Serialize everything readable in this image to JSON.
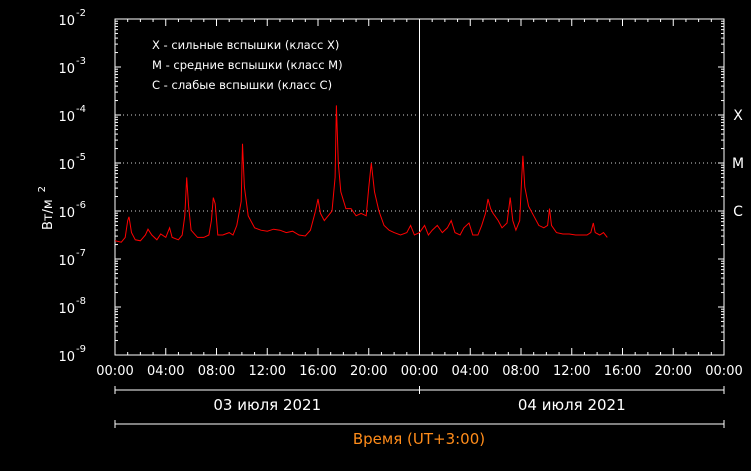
{
  "chart_data": {
    "type": "line",
    "scale": "log",
    "ylim_exp": [
      -9,
      -2
    ],
    "ylabel": "Вт/м",
    "ylabel_sup": "2",
    "ytick_exponents": [
      "-2",
      "-3",
      "-4",
      "-5",
      "-6",
      "-7",
      "-8",
      "-9"
    ],
    "ytick_base": "10",
    "xlabel": "Время (UT+3:00)",
    "x_unit": "hours since 03 июля 2021 00:00",
    "xlim": [
      0,
      48
    ],
    "xtick_labels": [
      "00:00",
      "04:00",
      "08:00",
      "12:00",
      "16:00",
      "20:00",
      "00:00",
      "04:00",
      "08:00",
      "12:00",
      "16:00",
      "20:00",
      "00:00"
    ],
    "dates": [
      "03 июля 2021",
      "04 июля 2021"
    ],
    "day_divider_hour": 24,
    "legend": [
      "X - сильные вспышки (класс X)",
      "M - средние вспышки (класс M)",
      "C  - слабые вспышки (класс C)"
    ],
    "class_lines": [
      {
        "label": "X",
        "exp": -4
      },
      {
        "label": "M",
        "exp": -5
      },
      {
        "label": "C",
        "exp": -6
      }
    ],
    "series": [
      {
        "color": "#ff0000",
        "points": [
          [
            0.0,
            -6.62
          ],
          [
            0.5,
            -6.65
          ],
          [
            0.8,
            -6.55
          ],
          [
            1.0,
            -6.2
          ],
          [
            1.1,
            -6.12
          ],
          [
            1.3,
            -6.45
          ],
          [
            1.6,
            -6.6
          ],
          [
            2.0,
            -6.62
          ],
          [
            2.4,
            -6.5
          ],
          [
            2.6,
            -6.38
          ],
          [
            2.9,
            -6.5
          ],
          [
            3.3,
            -6.6
          ],
          [
            3.6,
            -6.48
          ],
          [
            4.0,
            -6.55
          ],
          [
            4.3,
            -6.35
          ],
          [
            4.5,
            -6.55
          ],
          [
            5.0,
            -6.6
          ],
          [
            5.3,
            -6.5
          ],
          [
            5.5,
            -6.1
          ],
          [
            5.65,
            -5.3
          ],
          [
            5.8,
            -5.9
          ],
          [
            6.0,
            -6.4
          ],
          [
            6.5,
            -6.55
          ],
          [
            7.0,
            -6.55
          ],
          [
            7.4,
            -6.5
          ],
          [
            7.6,
            -6.2
          ],
          [
            7.75,
            -5.72
          ],
          [
            7.9,
            -5.85
          ],
          [
            8.1,
            -6.5
          ],
          [
            8.5,
            -6.5
          ],
          [
            9.0,
            -6.45
          ],
          [
            9.3,
            -6.5
          ],
          [
            9.6,
            -6.3
          ],
          [
            9.95,
            -5.8
          ],
          [
            10.05,
            -4.6
          ],
          [
            10.2,
            -5.5
          ],
          [
            10.5,
            -6.1
          ],
          [
            11.0,
            -6.35
          ],
          [
            11.5,
            -6.4
          ],
          [
            12.0,
            -6.42
          ],
          [
            12.5,
            -6.38
          ],
          [
            13.0,
            -6.4
          ],
          [
            13.5,
            -6.45
          ],
          [
            14.0,
            -6.42
          ],
          [
            14.5,
            -6.5
          ],
          [
            15.0,
            -6.52
          ],
          [
            15.4,
            -6.4
          ],
          [
            15.8,
            -6.0
          ],
          [
            16.0,
            -5.75
          ],
          [
            16.2,
            -6.05
          ],
          [
            16.5,
            -6.2
          ],
          [
            16.8,
            -6.1
          ],
          [
            17.1,
            -6.0
          ],
          [
            17.35,
            -5.3
          ],
          [
            17.45,
            -3.8
          ],
          [
            17.6,
            -5.0
          ],
          [
            17.8,
            -5.6
          ],
          [
            18.2,
            -5.95
          ],
          [
            18.6,
            -5.95
          ],
          [
            19.0,
            -6.1
          ],
          [
            19.4,
            -6.05
          ],
          [
            19.8,
            -6.1
          ],
          [
            20.0,
            -5.5
          ],
          [
            20.2,
            -5.0
          ],
          [
            20.45,
            -5.6
          ],
          [
            20.8,
            -6.0
          ],
          [
            21.2,
            -6.3
          ],
          [
            21.6,
            -6.4
          ],
          [
            22.0,
            -6.45
          ],
          [
            22.5,
            -6.5
          ],
          [
            23.0,
            -6.45
          ],
          [
            23.3,
            -6.3
          ],
          [
            23.6,
            -6.5
          ],
          [
            24.0,
            -6.45
          ],
          [
            24.4,
            -6.3
          ],
          [
            24.7,
            -6.5
          ],
          [
            25.0,
            -6.4
          ],
          [
            25.4,
            -6.3
          ],
          [
            25.8,
            -6.45
          ],
          [
            26.2,
            -6.35
          ],
          [
            26.5,
            -6.2
          ],
          [
            26.8,
            -6.45
          ],
          [
            27.2,
            -6.5
          ],
          [
            27.5,
            -6.35
          ],
          [
            27.9,
            -6.25
          ],
          [
            28.2,
            -6.5
          ],
          [
            28.6,
            -6.5
          ],
          [
            28.9,
            -6.3
          ],
          [
            29.2,
            -6.05
          ],
          [
            29.4,
            -5.75
          ],
          [
            29.6,
            -5.95
          ],
          [
            29.8,
            -6.05
          ],
          [
            30.2,
            -6.2
          ],
          [
            30.5,
            -6.35
          ],
          [
            30.9,
            -6.25
          ],
          [
            31.15,
            -5.72
          ],
          [
            31.35,
            -6.2
          ],
          [
            31.6,
            -6.4
          ],
          [
            31.9,
            -6.2
          ],
          [
            32.05,
            -5.35
          ],
          [
            32.15,
            -4.85
          ],
          [
            32.3,
            -5.5
          ],
          [
            32.6,
            -5.9
          ],
          [
            33.0,
            -6.1
          ],
          [
            33.4,
            -6.3
          ],
          [
            33.8,
            -6.35
          ],
          [
            34.1,
            -6.3
          ],
          [
            34.25,
            -5.95
          ],
          [
            34.4,
            -6.3
          ],
          [
            34.8,
            -6.45
          ],
          [
            35.3,
            -6.48
          ],
          [
            35.8,
            -6.48
          ],
          [
            36.3,
            -6.5
          ],
          [
            36.8,
            -6.5
          ],
          [
            37.2,
            -6.5
          ],
          [
            37.5,
            -6.45
          ],
          [
            37.7,
            -6.25
          ],
          [
            37.85,
            -6.45
          ],
          [
            38.2,
            -6.5
          ],
          [
            38.5,
            -6.45
          ],
          [
            38.8,
            -6.55
          ]
        ]
      }
    ]
  }
}
